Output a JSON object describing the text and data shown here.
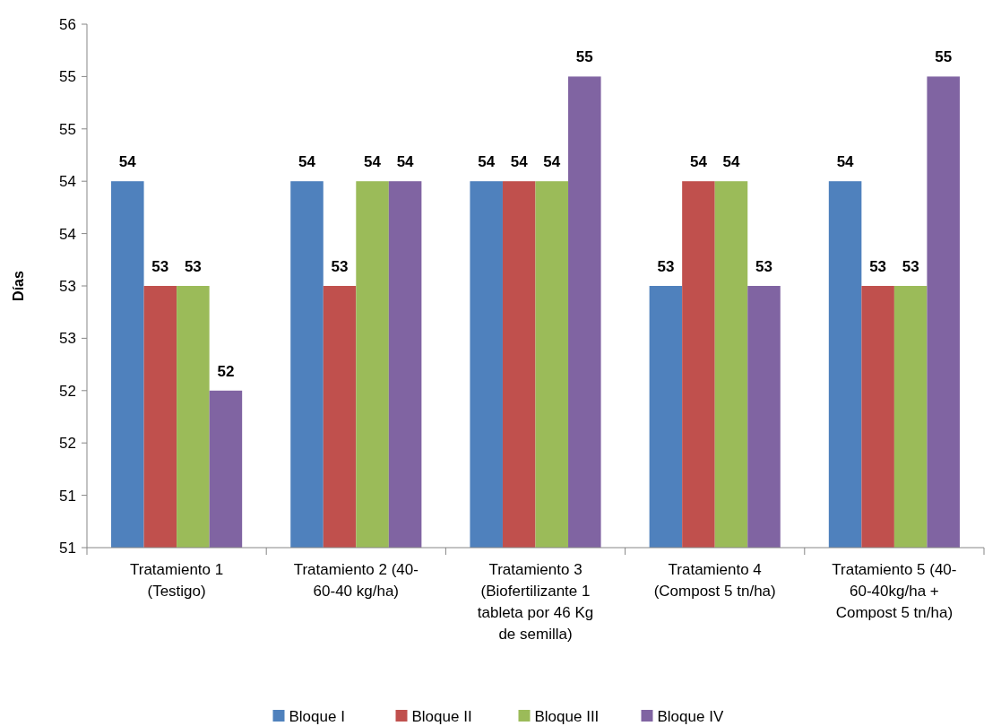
{
  "chart_data": {
    "type": "bar",
    "ylabel": "Días",
    "categories": [
      "Tratamiento 1 (Testigo)",
      "Tratamiento 2 (40-60-40 kg/ha)",
      "Tratamiento 3 (Biofertilizante 1 tableta por 46 Kg de semilla)",
      "Tratamiento 4 (Compost 5 tn/ha)",
      "Tratamiento 5 (40-60-40kg/ha + Compost 5 tn/ha)"
    ],
    "series": [
      {
        "name": "Bloque I",
        "color": "#4f81bd",
        "values": [
          54.3,
          54.3,
          54.3,
          53.3,
          54.3
        ],
        "value_labels": [
          "54",
          "54",
          "54",
          "53",
          "54"
        ]
      },
      {
        "name": "Bloque II",
        "color": "#c0504d",
        "values": [
          53.3,
          53.3,
          54.3,
          54.3,
          53.3
        ],
        "value_labels": [
          "53",
          "53",
          "54",
          "54",
          "53"
        ]
      },
      {
        "name": "Bloque III",
        "color": "#9bbb59",
        "values": [
          53.3,
          54.3,
          54.3,
          54.3,
          53.3
        ],
        "value_labels": [
          "53",
          "54",
          "54",
          "54",
          "53"
        ]
      },
      {
        "name": "Bloque IV",
        "color": "#8064a2",
        "values": [
          52.3,
          54.3,
          55.3,
          53.3,
          55.3
        ],
        "value_labels": [
          "52",
          "54",
          "55",
          "53",
          "55"
        ]
      }
    ],
    "ylim": [
      50.8,
      55.8
    ],
    "yticks": [
      {
        "value": 50.8,
        "label": "51"
      },
      {
        "value": 51.3,
        "label": "51"
      },
      {
        "value": 51.8,
        "label": "52"
      },
      {
        "value": 52.3,
        "label": "52"
      },
      {
        "value": 52.8,
        "label": "53"
      },
      {
        "value": 53.3,
        "label": "53"
      },
      {
        "value": 53.8,
        "label": "54"
      },
      {
        "value": 54.3,
        "label": "54"
      },
      {
        "value": 54.8,
        "label": "55"
      },
      {
        "value": 55.3,
        "label": "55"
      },
      {
        "value": 55.8,
        "label": "56"
      }
    ],
    "grid": false,
    "legend": "bottom"
  }
}
